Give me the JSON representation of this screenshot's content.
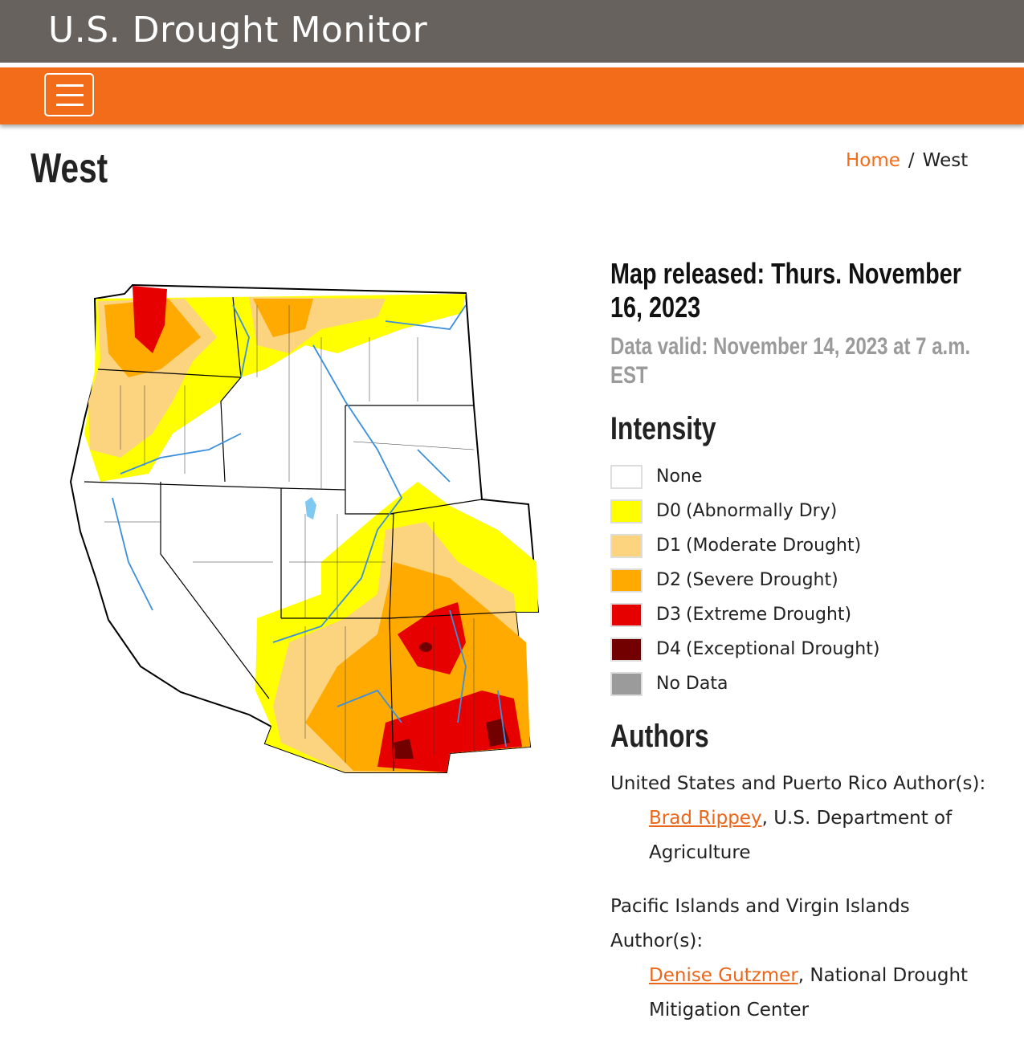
{
  "header": {
    "title": "U.S. Drought Monitor"
  },
  "page": {
    "title": "West",
    "breadcrumb": [
      "Home",
      "West"
    ],
    "breadcrumb_separator": "/"
  },
  "map_info": {
    "released": "Map released: Thurs. November 16, 2023",
    "valid": "Data valid: November 14, 2023 at 7 a.m. EST"
  },
  "legend": {
    "title": "Intensity",
    "items": [
      {
        "code": "None",
        "label": "",
        "color": "#ffffff"
      },
      {
        "code": "D0",
        "label": "(Abnormally Dry)",
        "color": "#ffff00"
      },
      {
        "code": "D1",
        "label": "(Moderate Drought)",
        "color": "#fcd37f"
      },
      {
        "code": "D2",
        "label": "(Severe Drought)",
        "color": "#ffaa00"
      },
      {
        "code": "D3",
        "label": "(Extreme Drought)",
        "color": "#e60000"
      },
      {
        "code": "D4",
        "label": "(Exceptional Drought)",
        "color": "#730000"
      },
      {
        "code": "No Data",
        "label": "",
        "color": "#9b9b9b"
      }
    ]
  },
  "authors": {
    "title": "Authors",
    "groups": [
      {
        "heading": "United States and Puerto Rico Author(s):",
        "authors": [
          {
            "name": "Brad Rippey",
            "affiliation": ", U.S. Department of Agriculture"
          }
        ]
      },
      {
        "heading": "Pacific Islands and Virgin Islands Author(s):",
        "authors": [
          {
            "name": "Denise Gutzmer",
            "affiliation": ", National Drought Mitigation Center"
          }
        ]
      }
    ]
  }
}
